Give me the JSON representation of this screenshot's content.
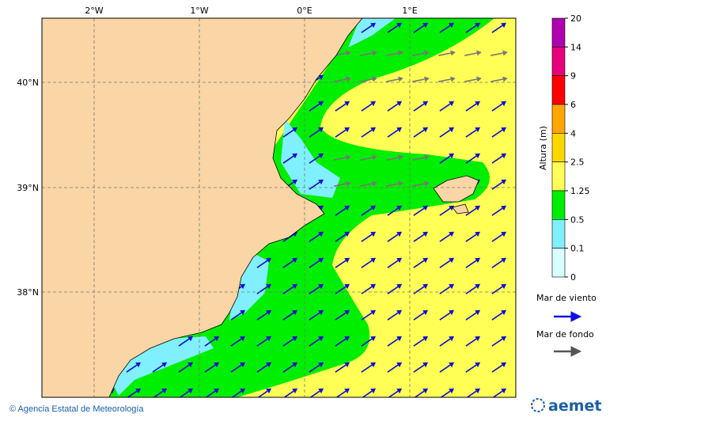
{
  "map": {
    "lon_labels": [
      "2°W",
      "1°W",
      "0°E",
      "1°E"
    ],
    "lat_labels": [
      "40°N",
      "39°N",
      "38°N"
    ],
    "colorbar": {
      "title": "Altura (m)",
      "labels": [
        20,
        14,
        9,
        6,
        4,
        2.5,
        1.25,
        0.5,
        0.1,
        0
      ]
    },
    "legend": [
      {
        "label": "Mar de viento"
      },
      {
        "label": "Mar de fondo"
      }
    ]
  },
  "footer": {
    "credit": "© Agencia Estatal de Meteorología",
    "logo": "aemet"
  }
}
